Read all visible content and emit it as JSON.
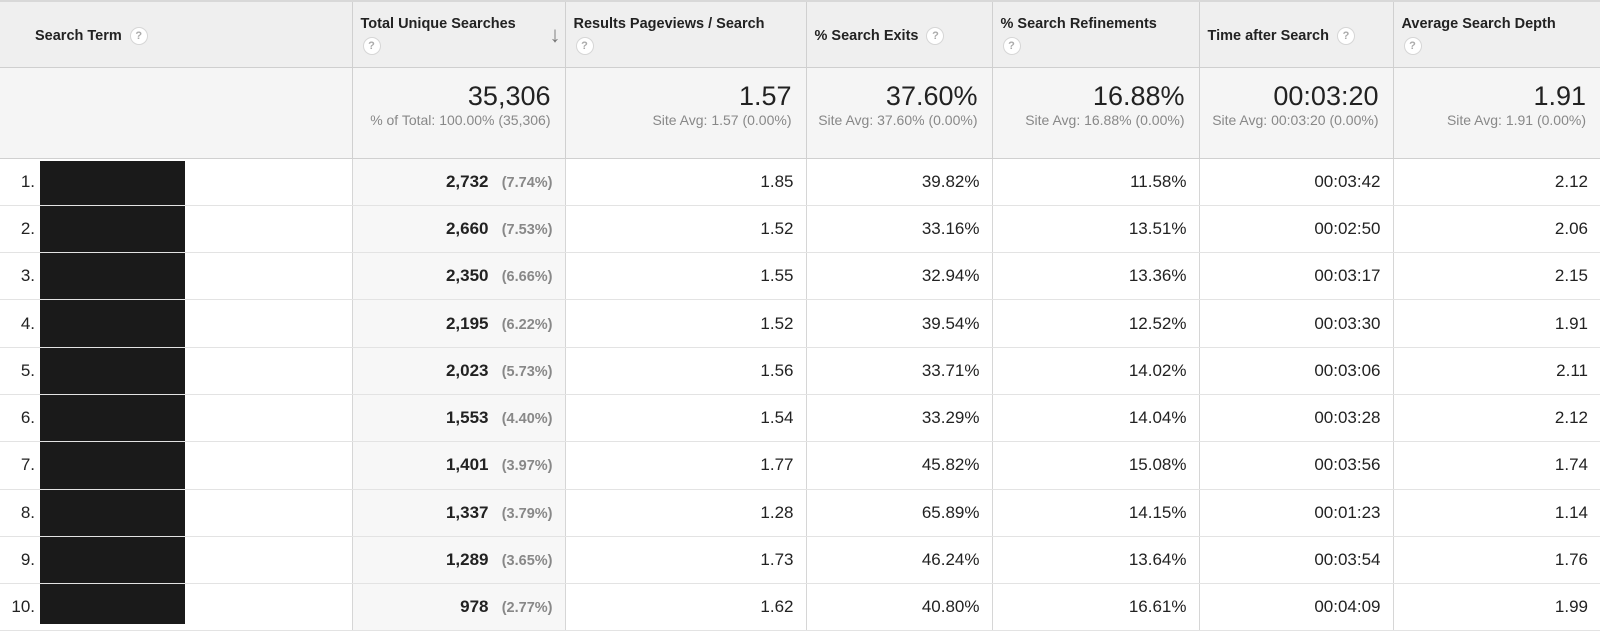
{
  "columns": {
    "search_term": "Search Term",
    "unique_searches": "Total Unique Searches",
    "pageviews": "Results Pageviews / Search",
    "exits": "% Search Exits",
    "refinements": "% Search Refinements",
    "time_after": "Time after Search",
    "depth": "Average Search Depth"
  },
  "help_icon": "?",
  "sort_icon": "↓",
  "totals": {
    "unique_searches": {
      "value": "35,306",
      "sub": "% of Total: 100.00% (35,306)"
    },
    "pageviews": {
      "value": "1.57",
      "sub": "Site Avg: 1.57 (0.00%)"
    },
    "exits": {
      "value": "37.60%",
      "sub": "Site Avg: 37.60% (0.00%)"
    },
    "refinements": {
      "value": "16.88%",
      "sub": "Site Avg: 16.88% (0.00%)"
    },
    "time_after": {
      "value": "00:03:20",
      "sub": "Site Avg: 00:03:20 (0.00%)"
    },
    "depth": {
      "value": "1.91",
      "sub": "Site Avg: 1.91 (0.00%)"
    }
  },
  "rows": [
    {
      "rank": "1.",
      "searches": "2,732",
      "pct": "(7.74%)",
      "pageviews": "1.85",
      "exits": "39.82%",
      "refinements": "11.58%",
      "time": "00:03:42",
      "depth": "2.12"
    },
    {
      "rank": "2.",
      "searches": "2,660",
      "pct": "(7.53%)",
      "pageviews": "1.52",
      "exits": "33.16%",
      "refinements": "13.51%",
      "time": "00:02:50",
      "depth": "2.06"
    },
    {
      "rank": "3.",
      "searches": "2,350",
      "pct": "(6.66%)",
      "pageviews": "1.55",
      "exits": "32.94%",
      "refinements": "13.36%",
      "time": "00:03:17",
      "depth": "2.15"
    },
    {
      "rank": "4.",
      "searches": "2,195",
      "pct": "(6.22%)",
      "pageviews": "1.52",
      "exits": "39.54%",
      "refinements": "12.52%",
      "time": "00:03:30",
      "depth": "1.91"
    },
    {
      "rank": "5.",
      "searches": "2,023",
      "pct": "(5.73%)",
      "pageviews": "1.56",
      "exits": "33.71%",
      "refinements": "14.02%",
      "time": "00:03:06",
      "depth": "2.11"
    },
    {
      "rank": "6.",
      "searches": "1,553",
      "pct": "(4.40%)",
      "pageviews": "1.54",
      "exits": "33.29%",
      "refinements": "14.04%",
      "time": "00:03:28",
      "depth": "2.12"
    },
    {
      "rank": "7.",
      "searches": "1,401",
      "pct": "(3.97%)",
      "pageviews": "1.77",
      "exits": "45.82%",
      "refinements": "15.08%",
      "time": "00:03:56",
      "depth": "1.74"
    },
    {
      "rank": "8.",
      "searches": "1,337",
      "pct": "(3.79%)",
      "pageviews": "1.28",
      "exits": "65.89%",
      "refinements": "14.15%",
      "time": "00:01:23",
      "depth": "1.14"
    },
    {
      "rank": "9.",
      "searches": "1,289",
      "pct": "(3.65%)",
      "pageviews": "1.73",
      "exits": "46.24%",
      "refinements": "13.64%",
      "time": "00:03:54",
      "depth": "1.76"
    },
    {
      "rank": "10.",
      "searches": "978",
      "pct": "(2.77%)",
      "pageviews": "1.62",
      "exits": "40.80%",
      "refinements": "16.61%",
      "time": "00:04:09",
      "depth": "1.99"
    }
  ]
}
